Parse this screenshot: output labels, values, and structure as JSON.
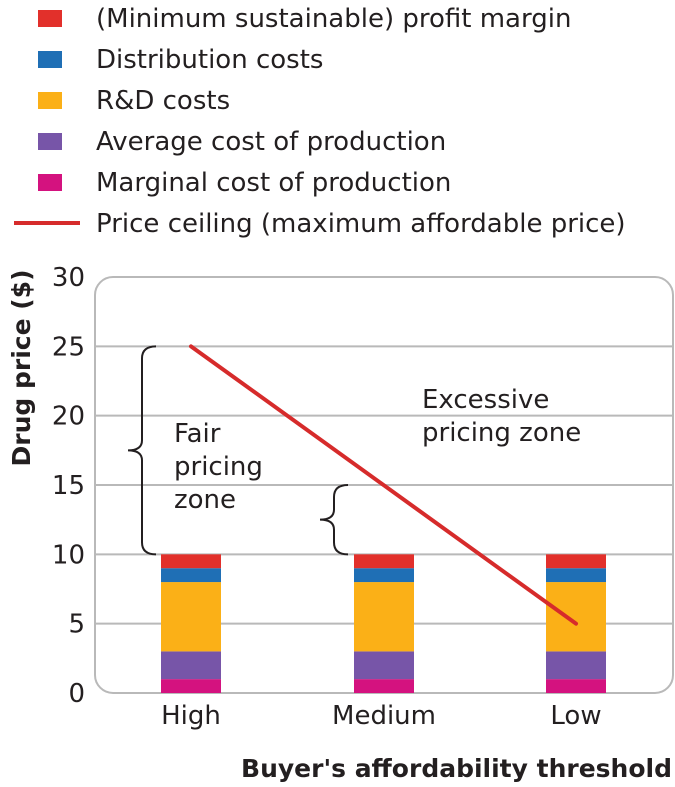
{
  "chart_data": {
    "type": "bar",
    "stacked": true,
    "title": "",
    "xlabel": "Buyer's affordability threshold",
    "ylabel": "Drug price ($)",
    "ylim": [
      0,
      30
    ],
    "yticks": [
      0,
      5,
      10,
      15,
      20,
      25,
      30
    ],
    "grid": true,
    "legend_position": "top",
    "categories": [
      "High",
      "Medium",
      "Low"
    ],
    "series": [
      {
        "name": "Marginal cost of production",
        "color": "#d4127f",
        "values": [
          1,
          1,
          1
        ]
      },
      {
        "name": "Average cost of production",
        "color": "#7755a8",
        "values": [
          2,
          2,
          2
        ]
      },
      {
        "name": "R&D costs",
        "color": "#fbb017",
        "values": [
          5,
          5,
          5
        ]
      },
      {
        "name": "Distribution costs",
        "color": "#1f6fb5",
        "values": [
          1,
          1,
          1
        ]
      },
      {
        "name": "(Minimum sustainable) profit margin",
        "color": "#e2302b",
        "values": [
          1,
          1,
          1
        ]
      }
    ],
    "legend_order": [
      "(Minimum sustainable) profit margin",
      "Distribution costs",
      "R&D costs",
      "Average cost of production",
      "Marginal cost of production"
    ],
    "line": {
      "name": "Price ceiling (maximum affordable price)",
      "color": "#d62b2b",
      "points": [
        {
          "x": "High",
          "y": 25
        },
        {
          "x": "Low",
          "y": 5
        }
      ]
    },
    "annotations": [
      {
        "lines": [
          "Fair",
          "pricing",
          "zone"
        ],
        "brace_from": 10,
        "brace_to": 25,
        "category": "High"
      },
      {
        "lines": [
          "Excessive",
          "pricing zone"
        ],
        "brace_from": 10,
        "brace_to": 15,
        "category": "Medium"
      }
    ]
  }
}
